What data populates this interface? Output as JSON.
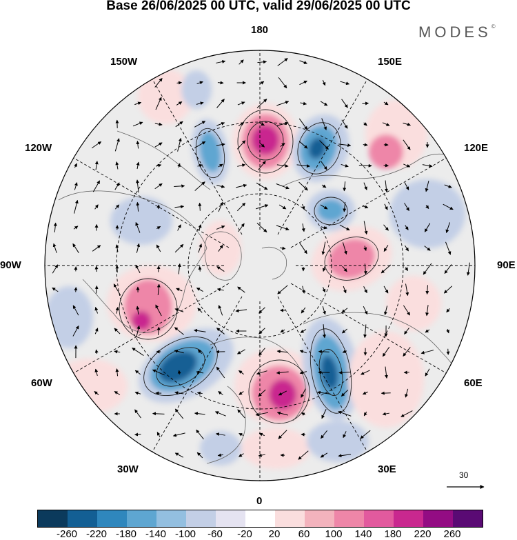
{
  "title": "Base 26/06/2025 00 UTC, valid 29/06/2025 00 UTC",
  "brand": "MODES",
  "brand_mark": "©",
  "longitude_labels": {
    "top": "180",
    "bottom": "0",
    "left": "90W",
    "right": "90E",
    "upper_left_1": "150W",
    "upper_left_2": "120W",
    "upper_right_1": "150E",
    "upper_right_2": "120E",
    "lower_left_1": "60W",
    "lower_left_2": "30W",
    "lower_right_1": "60E",
    "lower_right_2": "30E"
  },
  "reference_vector": "30",
  "colorbar": {
    "colors": [
      "#0b3a5c",
      "#135f94",
      "#2f87bd",
      "#5ea6d1",
      "#93bfe0",
      "#c3cfe6",
      "#e5e3f1",
      "#ffffff",
      "#fadede",
      "#f3b3bd",
      "#ee86a8",
      "#e25a9e",
      "#c9288f",
      "#930c83",
      "#5a0a74"
    ],
    "tick_labels": [
      "-260",
      "-220",
      "-180",
      "-140",
      "-100",
      "-60",
      "-20",
      "20",
      "60",
      "100",
      "140",
      "180",
      "220",
      "260"
    ]
  },
  "anomaly_colors": {
    "strong_negative": "#135f94",
    "negative": "#5ea6d1",
    "weak_negative": "#c3cfe6",
    "weak_positive": "#fadede",
    "positive": "#ee86a8",
    "strong_positive": "#c9288f"
  }
}
